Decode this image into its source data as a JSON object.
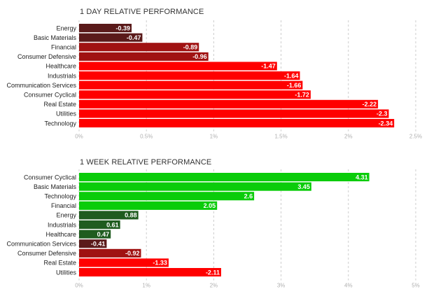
{
  "chart_data": [
    {
      "type": "bar",
      "orientation": "horizontal",
      "title": "1 DAY RELATIVE PERFORMANCE",
      "categories": [
        "Energy",
        "Basic Materials",
        "Financial",
        "Consumer Defensive",
        "Healthcare",
        "Industrials",
        "Communication Services",
        "Consumer Cyclical",
        "Real Estate",
        "Utilities",
        "Technology"
      ],
      "values": [
        -0.39,
        -0.47,
        -0.89,
        -0.96,
        -1.47,
        -1.64,
        -1.66,
        -1.72,
        -2.22,
        -2.3,
        -2.34
      ],
      "value_labels": [
        "-0.39",
        "-0.47",
        "-0.89",
        "-0.96",
        "-1.47",
        "-1.64",
        "-1.66",
        "-1.72",
        "-2.22",
        "-2.3",
        "-2.34"
      ],
      "bar_magnitude": "absolute",
      "xlim": [
        0,
        2.5
      ],
      "xticks": [
        "0%",
        "0.5%",
        "1%",
        "1.5%",
        "2%",
        "2.5%"
      ],
      "grid": true,
      "colors": {
        "negative_dark": "#5a1a1a",
        "negative_mid": "#a01212",
        "negative_bright": "#ff0000",
        "positive_dark": "#1f5c1f",
        "positive_mid": "#18a818",
        "positive_bright": "#0acc0a"
      }
    },
    {
      "type": "bar",
      "orientation": "horizontal",
      "title": "1 WEEK RELATIVE PERFORMANCE",
      "categories": [
        "Consumer Cyclical",
        "Basic Materials",
        "Technology",
        "Financial",
        "Energy",
        "Industrials",
        "Healthcare",
        "Communication Services",
        "Consumer Defensive",
        "Real Estate",
        "Utilities"
      ],
      "values": [
        4.31,
        3.45,
        2.6,
        2.05,
        0.88,
        0.61,
        0.47,
        -0.41,
        -0.92,
        -1.33,
        -2.11
      ],
      "value_labels": [
        "4.31",
        "3.45",
        "2.6",
        "2.05",
        "0.88",
        "0.61",
        "0.47",
        "-0.41",
        "-0.92",
        "-1.33",
        "-2.11"
      ],
      "bar_magnitude": "absolute",
      "xlim": [
        0,
        5
      ],
      "xticks": [
        "0%",
        "1%",
        "2%",
        "3%",
        "4%",
        "5%"
      ],
      "grid": true,
      "colors": {
        "negative_dark": "#5a1a1a",
        "negative_mid": "#a01212",
        "negative_bright": "#ff0000",
        "positive_dark": "#1f5c1f",
        "positive_mid": "#18a818",
        "positive_bright": "#0acc0a"
      }
    }
  ]
}
